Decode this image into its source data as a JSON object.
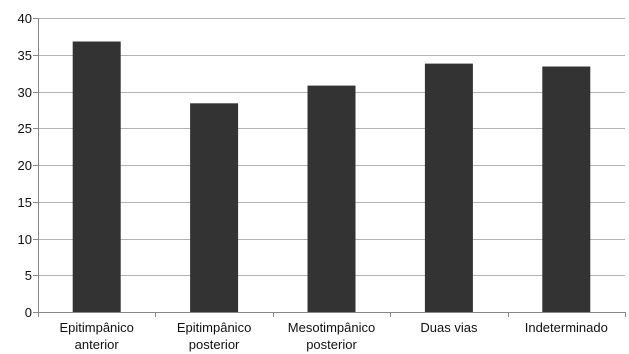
{
  "chart_data": {
    "type": "bar",
    "categories": [
      [
        "Epitimpânico",
        "anterior"
      ],
      [
        "Epitimpânico",
        "posterior"
      ],
      [
        "Mesotimpânico",
        "posterior"
      ],
      [
        "Duas vias"
      ],
      [
        "Indeterminado"
      ]
    ],
    "values": [
      36.8,
      28.4,
      30.8,
      33.8,
      33.4
    ],
    "ylim": [
      0,
      40
    ],
    "yticks": [
      0,
      5,
      10,
      15,
      20,
      25,
      30,
      35,
      40
    ],
    "grid": true,
    "legend": "none",
    "colors": {
      "bar": "#333333",
      "grid": "#b3b3b3",
      "axis": "#888888"
    }
  }
}
